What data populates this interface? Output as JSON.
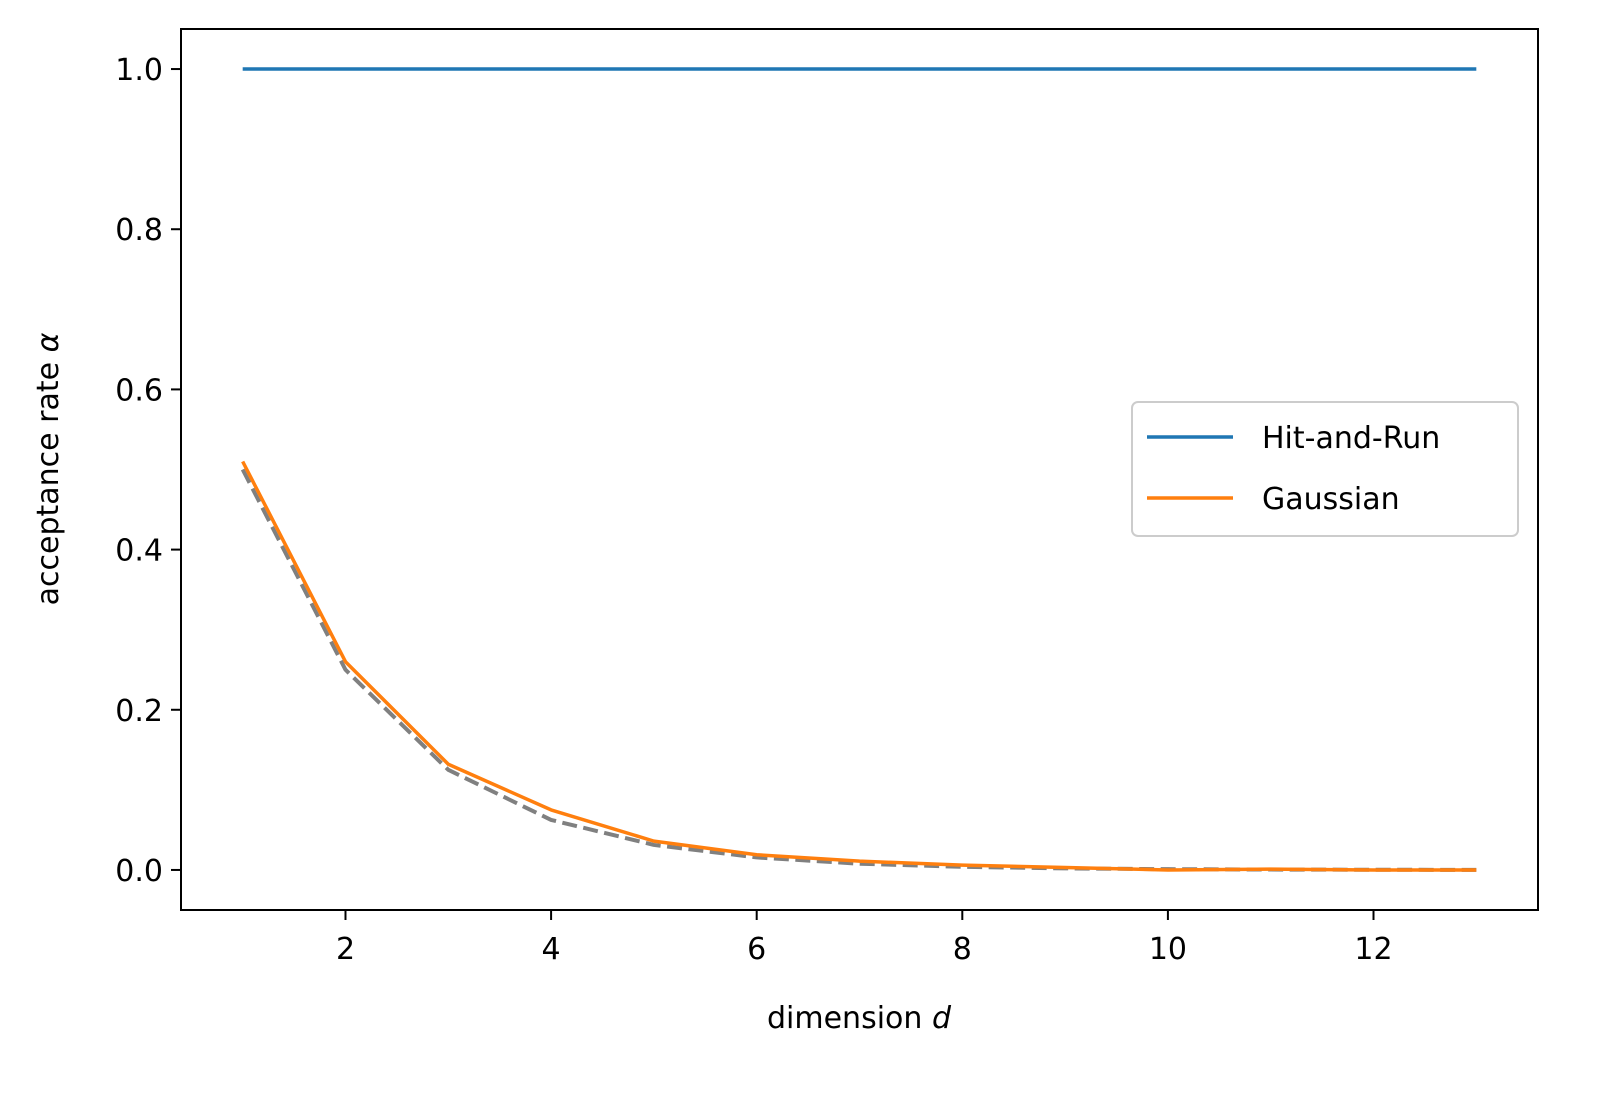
{
  "chart_data": {
    "type": "line",
    "title": "",
    "xlabel": "dimension",
    "xlabel_math": "d",
    "ylabel": "acceptance rate",
    "ylabel_math": "α",
    "xlim": [
      0.4,
      13.6
    ],
    "ylim": [
      -0.05,
      1.05
    ],
    "xticks": [
      2,
      4,
      6,
      8,
      10,
      12
    ],
    "xtick_labels": [
      "2",
      "4",
      "6",
      "8",
      "10",
      "12"
    ],
    "yticks": [
      0.0,
      0.2,
      0.4,
      0.6,
      0.8,
      1.0
    ],
    "ytick_labels": [
      "0.0",
      "0.2",
      "0.4",
      "0.6",
      "0.8",
      "1.0"
    ],
    "grid": false,
    "legend_placement": "center-right",
    "x": [
      1,
      2,
      3,
      4,
      5,
      6,
      7,
      8,
      9,
      10,
      11,
      12,
      13
    ],
    "series": [
      {
        "name": "Hit-and-Run",
        "color": "#1f77b4",
        "style": "solid",
        "in_legend": true,
        "values": [
          1.0,
          1.0,
          1.0,
          1.0,
          1.0,
          1.0,
          1.0,
          1.0,
          1.0,
          1.0,
          1.0,
          1.0,
          1.0
        ]
      },
      {
        "color": "#808080",
        "style": "dashed",
        "in_legend": false,
        "values": [
          0.5,
          0.25,
          0.125,
          0.0625,
          0.03125,
          0.015625,
          0.0078125,
          0.00390625,
          0.001953125,
          0.0009765625,
          0.00048828125,
          0.000244140625,
          0.0001220703125
        ]
      },
      {
        "name": "Gaussian",
        "color": "#ff7f0e",
        "style": "solid",
        "in_legend": true,
        "values": [
          0.51,
          0.26,
          0.132,
          0.075,
          0.036,
          0.019,
          0.011,
          0.006,
          0.003,
          0.0,
          0.001,
          0.0,
          0.0
        ]
      }
    ]
  }
}
